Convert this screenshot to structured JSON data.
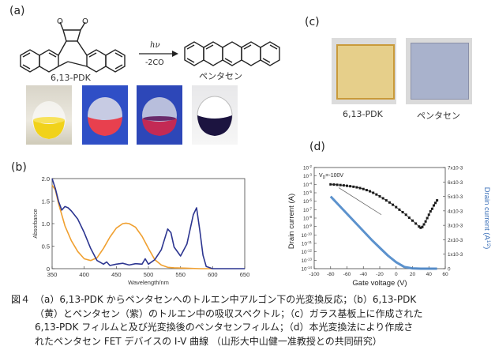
{
  "panel_labels": {
    "a": "(a)",
    "b": "(b)",
    "c": "(c)",
    "d": "(d)"
  },
  "panel_a": {
    "reactant_name": "6,13-PDK",
    "product_name": "ペンタセン",
    "arrow_top": "hν",
    "arrow_bottom": "-2CO"
  },
  "panel_c": {
    "film_left_label": "6,13-PDK",
    "film_right_label": "ペンタセン"
  },
  "chart_data": [
    {
      "type": "line",
      "panel": "b",
      "xlabel": "Wavelength/nm",
      "ylabel": "Absorbance",
      "xlim": [
        350,
        650
      ],
      "ylim": [
        0,
        2.0
      ],
      "x_ticks": [
        "350",
        "400",
        "450",
        "500",
        "550",
        "600",
        "650"
      ],
      "y_ticks": [
        "0",
        "0.5",
        "1.0",
        "1.5",
        "2.0"
      ],
      "series": [
        {
          "color": "#f0a030",
          "x": [
            350,
            355,
            360,
            370,
            380,
            390,
            400,
            410,
            420,
            430,
            440,
            450,
            460,
            465,
            470,
            480,
            490,
            500,
            510,
            520,
            530,
            540,
            560,
            580,
            600
          ],
          "y": [
            1.85,
            1.75,
            1.45,
            0.95,
            0.62,
            0.38,
            0.22,
            0.18,
            0.24,
            0.45,
            0.7,
            0.9,
            1.0,
            1.01,
            1.0,
            0.92,
            0.72,
            0.45,
            0.2,
            0.08,
            0.03,
            0.02,
            0.01,
            0.0,
            0.0
          ]
        },
        {
          "color": "#2c3590",
          "x": [
            350,
            355,
            360,
            365,
            370,
            375,
            380,
            390,
            400,
            410,
            420,
            430,
            435,
            440,
            450,
            460,
            470,
            480,
            490,
            495,
            500,
            510,
            520,
            530,
            535,
            540,
            550,
            560,
            570,
            575,
            580,
            585,
            590,
            600,
            620,
            650
          ],
          "y": [
            2.0,
            1.78,
            1.5,
            1.3,
            1.38,
            1.35,
            1.28,
            1.1,
            0.8,
            0.45,
            0.18,
            0.1,
            0.15,
            0.07,
            0.1,
            0.12,
            0.08,
            0.11,
            0.1,
            0.22,
            0.1,
            0.2,
            0.42,
            0.88,
            0.8,
            0.48,
            0.28,
            0.55,
            1.2,
            1.35,
            0.85,
            0.3,
            0.05,
            0.0,
            0.0,
            0.0
          ]
        }
      ]
    },
    {
      "type": "line",
      "panel": "d",
      "xlabel": "Gate voltage (V)",
      "ylabel": "Drain current (A)",
      "y2label": "Drain current (A",
      "y2label_exp": "1/2",
      "y2label_close": ")",
      "annotation": "V",
      "annotation_sub": "D",
      "annotation_tail": "=-100V",
      "xlim": [
        -100,
        60
      ],
      "x_ticks": [
        "-100",
        "-80",
        "-60",
        "-40",
        "-20",
        "0",
        "20",
        "40",
        "60"
      ],
      "y_ticks_left_exp": [
        "-2",
        "-3",
        "-4",
        "-5",
        "-6",
        "-7",
        "-8",
        "-9",
        "-10",
        "-11",
        "-12",
        "-13",
        "-14"
      ],
      "y_ticks_right": [
        "7x10-3",
        "6x10-3",
        "5x10-3",
        "4x10-3",
        "3x10-3",
        "2x10-3",
        "1x10-3",
        "0"
      ],
      "log_series": {
        "color": "#1a1a1a",
        "marker": "square",
        "x": [
          -80,
          -76,
          -72,
          -68,
          -64,
          -60,
          -56,
          -52,
          -48,
          -44,
          -40,
          -36,
          -32,
          -28,
          -24,
          -20,
          -16,
          -12,
          -8,
          -4,
          0,
          4,
          8,
          12,
          16,
          20,
          24,
          28,
          30,
          32,
          34,
          36,
          38,
          40,
          42,
          44,
          46,
          48,
          50
        ],
        "y": [
          -4.0,
          -4.02,
          -4.05,
          -4.08,
          -4.12,
          -4.17,
          -4.22,
          -4.28,
          -4.35,
          -4.44,
          -4.55,
          -4.68,
          -4.82,
          -5.0,
          -5.2,
          -5.42,
          -5.65,
          -5.9,
          -6.15,
          -6.42,
          -6.7,
          -7.0,
          -7.3,
          -7.6,
          -7.95,
          -8.3,
          -8.65,
          -9.0,
          -9.15,
          -9.05,
          -8.75,
          -8.4,
          -8.0,
          -7.6,
          -7.2,
          -6.9,
          -6.5,
          -6.2,
          -5.9
        ]
      },
      "sqrt_series": {
        "color": "#4a86c8",
        "x": [
          -80,
          -70,
          -60,
          -50,
          -40,
          -30,
          -20,
          -10,
          0,
          10,
          20,
          30,
          40,
          50
        ],
        "y": [
          0.005,
          0.0044,
          0.0038,
          0.0032,
          0.0026,
          0.002,
          0.00145,
          0.0009,
          0.00045,
          0.00012,
          2e-05,
          0.0,
          0.0,
          0.0
        ]
      },
      "fit_line": {
        "x1": -70,
        "y1": -4.4,
        "x2": -18,
        "y2": -7.6
      }
    }
  ],
  "caption": {
    "figure_label": "図４",
    "line1": "（a）6,13-PDK からペンタセンへのトルエン中アルゴン下の光変換反応；（b）6,13-PDK",
    "line2": "（黄）とペンタセン（紫）のトルエン中の吸収スペクトル；（c）ガラス基板上に作成された",
    "line3": "6,13-PDK フィルムと及び光変換後のペンタセンフィルム；（d）本光変換法により作成さ",
    "line4": "れたペンタセン FET デバイスの I-V 曲線 （山形大中山健一准教授との共同研究）"
  }
}
